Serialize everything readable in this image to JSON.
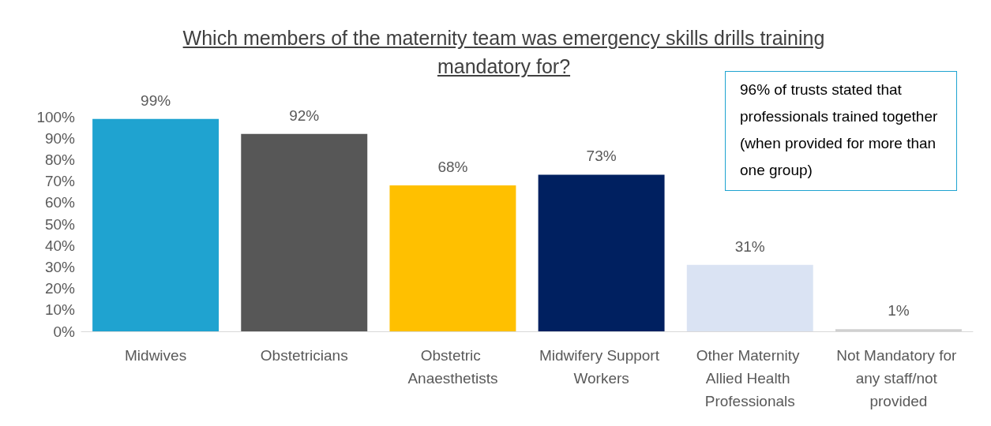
{
  "chart_data": {
    "type": "bar",
    "title": "Which members of the maternity team was emergency skills drills training mandatory for?",
    "categories": [
      "Midwives",
      "Obstetricians",
      "Obstetric Anaesthetists",
      "Midwifery Support Workers",
      "Other Maternity Allied Health Professionals",
      "Not Mandatory for any staff/not provided"
    ],
    "values": [
      99,
      92,
      68,
      73,
      31,
      1
    ],
    "colors": [
      "#1fa3d0",
      "#575757",
      "#ffc000",
      "#002060",
      "#dae3f3",
      "#d0d0d0"
    ],
    "value_labels": [
      "99%",
      "92%",
      "68%",
      "73%",
      "31%",
      "1%"
    ],
    "ylim": [
      0,
      100
    ],
    "yticks": [
      {
        "value": 0,
        "label": "0%"
      },
      {
        "value": 10,
        "label": "10%"
      },
      {
        "value": 20,
        "label": "20%"
      },
      {
        "value": 30,
        "label": "30%"
      },
      {
        "value": 40,
        "label": "40%"
      },
      {
        "value": 50,
        "label": "50%"
      },
      {
        "value": 60,
        "label": "60%"
      },
      {
        "value": 70,
        "label": "70%"
      },
      {
        "value": 80,
        "label": "80%"
      },
      {
        "value": 90,
        "label": "90%"
      },
      {
        "value": 100,
        "label": "100%"
      }
    ],
    "annotations": [
      "96% of trusts stated that professionals trained together (when provided for more than one group)"
    ],
    "grid": false
  }
}
